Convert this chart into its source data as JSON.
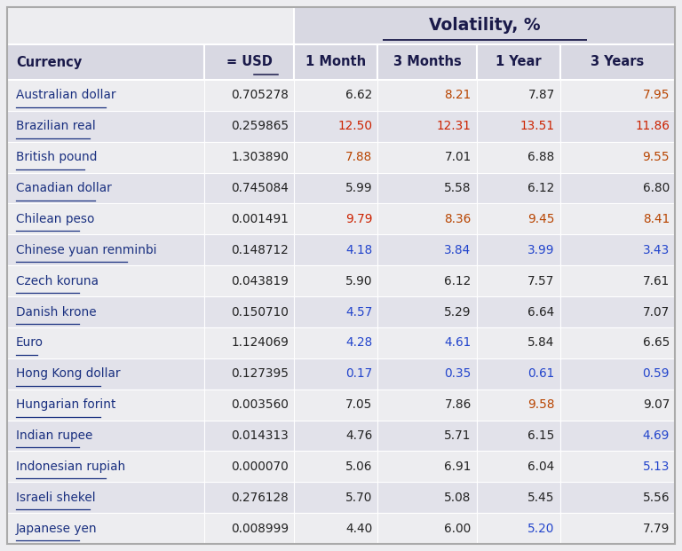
{
  "title": "Volatility, %",
  "col_headers": [
    "Currency",
    "= USD",
    "1 Month",
    "3 Months",
    "1 Year",
    "3 Years"
  ],
  "rows": [
    [
      "Australian dollar",
      "0.705278",
      "6.62",
      "8.21",
      "7.87",
      "7.95"
    ],
    [
      "Brazilian real",
      "0.259865",
      "12.50",
      "12.31",
      "13.51",
      "11.86"
    ],
    [
      "British pound",
      "1.303890",
      "7.88",
      "7.01",
      "6.88",
      "9.55"
    ],
    [
      "Canadian dollar",
      "0.745084",
      "5.99",
      "5.58",
      "6.12",
      "6.80"
    ],
    [
      "Chilean peso",
      "0.001491",
      "9.79",
      "8.36",
      "9.45",
      "8.41"
    ],
    [
      "Chinese yuan renminbi",
      "0.148712",
      "4.18",
      "3.84",
      "3.99",
      "3.43"
    ],
    [
      "Czech koruna",
      "0.043819",
      "5.90",
      "6.12",
      "7.57",
      "7.61"
    ],
    [
      "Danish krone",
      "0.150710",
      "4.57",
      "5.29",
      "6.64",
      "7.07"
    ],
    [
      "Euro",
      "1.124069",
      "4.28",
      "4.61",
      "5.84",
      "6.65"
    ],
    [
      "Hong Kong dollar",
      "0.127395",
      "0.17",
      "0.35",
      "0.61",
      "0.59"
    ],
    [
      "Hungarian forint",
      "0.003560",
      "7.05",
      "7.86",
      "9.58",
      "9.07"
    ],
    [
      "Indian rupee",
      "0.014313",
      "4.76",
      "5.71",
      "6.15",
      "4.69"
    ],
    [
      "Indonesian rupiah",
      "0.000070",
      "5.06",
      "6.91",
      "6.04",
      "5.13"
    ],
    [
      "Israeli shekel",
      "0.276128",
      "5.70",
      "5.08",
      "5.45",
      "5.56"
    ],
    [
      "Japanese yen",
      "0.008999",
      "4.40",
      "6.00",
      "5.20",
      "7.79"
    ]
  ],
  "cell_colors": [
    [
      "link",
      "default",
      "default",
      "orange",
      "default",
      "orange"
    ],
    [
      "link",
      "default",
      "red",
      "red",
      "red",
      "red"
    ],
    [
      "link",
      "default",
      "orange",
      "default",
      "default",
      "orange"
    ],
    [
      "link",
      "default",
      "default",
      "default",
      "default",
      "default"
    ],
    [
      "link",
      "default",
      "red",
      "orange",
      "orange",
      "orange"
    ],
    [
      "link",
      "default",
      "blue",
      "blue",
      "blue",
      "blue"
    ],
    [
      "link",
      "default",
      "default",
      "default",
      "default",
      "default"
    ],
    [
      "link",
      "default",
      "blue",
      "default",
      "default",
      "default"
    ],
    [
      "link",
      "default",
      "blue",
      "blue",
      "default",
      "default"
    ],
    [
      "link",
      "default",
      "blue",
      "blue",
      "blue",
      "blue"
    ],
    [
      "link",
      "default",
      "default",
      "default",
      "orange",
      "default"
    ],
    [
      "link",
      "default",
      "default",
      "default",
      "default",
      "blue"
    ],
    [
      "link",
      "default",
      "default",
      "default",
      "default",
      "blue"
    ],
    [
      "link",
      "default",
      "default",
      "default",
      "default",
      "default"
    ],
    [
      "link",
      "default",
      "default",
      "default",
      "blue",
      "default"
    ]
  ],
  "bg_light": "#ededf0",
  "bg_dark": "#e2e2ea",
  "header_bg": "#d8d8e2",
  "title_bg": "#d8d8e2",
  "border_color": "#ffffff",
  "text_dark": "#1a1a4a",
  "text_link": "#1a3080",
  "text_red": "#cc2200",
  "text_orange": "#b84400",
  "text_blue": "#2244cc",
  "text_black": "#222222",
  "figsize": [
    7.68,
    6.21
  ],
  "dpi": 100
}
